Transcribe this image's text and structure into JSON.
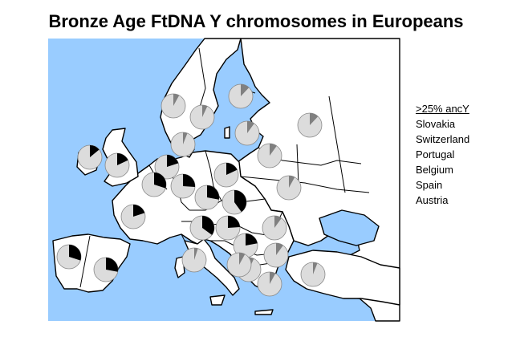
{
  "title": "Bronze Age FtDNA Y chromosomes in Europeans",
  "legend": {
    "header": ">25% ancY",
    "items": [
      "Slovakia",
      "Switzerland",
      "Portugal",
      "Belgium",
      "Spain",
      "Austria"
    ]
  },
  "colors": {
    "sea": "#99ccff",
    "land": "#ffffff",
    "border": "#000000",
    "pie_bg": "#dcdcdc",
    "pie_dark": "#000000",
    "pie_gray": "#808080"
  },
  "pies": [
    {
      "id": "norway-west",
      "dark": 0,
      "gray": 0.08
    },
    {
      "id": "norway-east",
      "dark": 0,
      "gray": 0.07
    },
    {
      "id": "finland",
      "dark": 0,
      "gray": 0.12
    },
    {
      "id": "sweden-south",
      "dark": 0,
      "gray": 0.06
    },
    {
      "id": "baltics",
      "dark": 0,
      "gray": 0.1
    },
    {
      "id": "russia-north",
      "dark": 0,
      "gray": 0.12
    },
    {
      "id": "ireland",
      "dark": 0.14,
      "gray": 0
    },
    {
      "id": "britain",
      "dark": 0.18,
      "gray": 0
    },
    {
      "id": "netherlands",
      "dark": 0.2,
      "gray": 0
    },
    {
      "id": "belgium",
      "dark": 0.3,
      "gray": 0
    },
    {
      "id": "germany-west",
      "dark": 0.26,
      "gray": 0
    },
    {
      "id": "germany-east",
      "dark": 0.18,
      "gray": 0
    },
    {
      "id": "poland",
      "dark": 0,
      "gray": 0.1
    },
    {
      "id": "belarus-ukraine",
      "dark": 0,
      "gray": 0.08
    },
    {
      "id": "france",
      "dark": 0.2,
      "gray": 0
    },
    {
      "id": "switzerland",
      "dark": 0.35,
      "gray": 0
    },
    {
      "id": "austria",
      "dark": 0.28,
      "gray": 0
    },
    {
      "id": "slovakia",
      "dark": 0.4,
      "gray": 0
    },
    {
      "id": "hungary",
      "dark": 0.24,
      "gray": 0
    },
    {
      "id": "italy-north",
      "dark": 0,
      "gray": 0.05
    },
    {
      "id": "croatia",
      "dark": 0.22,
      "gray": 0
    },
    {
      "id": "romania",
      "dark": 0,
      "gray": 0.1
    },
    {
      "id": "serbia",
      "dark": 0,
      "gray": 0.07
    },
    {
      "id": "bulgaria",
      "dark": 0,
      "gray": 0.1
    },
    {
      "id": "portugal",
      "dark": 0.3,
      "gray": 0
    },
    {
      "id": "spain",
      "dark": 0.28,
      "gray": 0
    },
    {
      "id": "italy-south",
      "dark": 0,
      "gray": 0.08
    },
    {
      "id": "greece",
      "dark": 0,
      "gray": 0.08
    },
    {
      "id": "turkey",
      "dark": 0,
      "gray": 0.06
    }
  ]
}
